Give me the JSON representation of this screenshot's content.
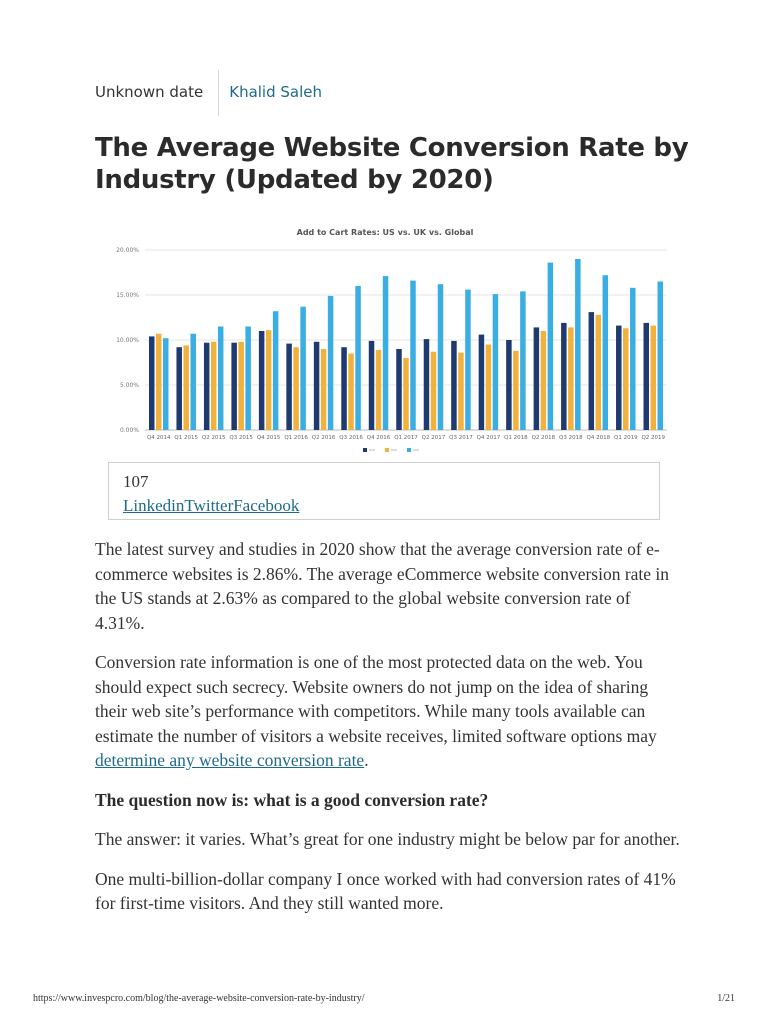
{
  "meta": {
    "date": "Unknown date",
    "author": "Khalid Saleh"
  },
  "title": "The Average Website Conversion Rate by Industry (Updated by 2020)",
  "share": {
    "count": "107",
    "links": "LinkedinTwitterFacebook"
  },
  "chart_data": {
    "type": "bar",
    "title": "Add to Cart Rates: US vs. UK vs. Global",
    "categories": [
      "Q4 2014",
      "Q1 2015",
      "Q2 2015",
      "Q3 2015",
      "Q4 2015",
      "Q1 2016",
      "Q2 2016",
      "Q3 2016",
      "Q4 2016",
      "Q1 2017",
      "Q2 2017",
      "Q3 2017",
      "Q4 2017",
      "Q1 2018",
      "Q2 2018",
      "Q3 2018",
      "Q4 2018",
      "Q1 2019",
      "Q2 2019"
    ],
    "ylim": [
      0,
      20
    ],
    "yticks": [
      "0.00%",
      "5.00%",
      "10.00%",
      "15.00%",
      "20.00%"
    ],
    "series": [
      {
        "color": "#1f3a6e",
        "values": [
          10.4,
          9.2,
          9.7,
          9.7,
          11.0,
          9.6,
          9.8,
          9.2,
          9.9,
          9.0,
          10.1,
          9.9,
          10.6,
          10.0,
          11.4,
          11.9,
          13.1,
          11.6,
          11.9
        ]
      },
      {
        "color": "#f0b23c",
        "values": [
          10.7,
          9.4,
          9.8,
          9.8,
          11.1,
          9.2,
          9.0,
          8.5,
          8.9,
          8.0,
          8.7,
          8.6,
          9.5,
          8.8,
          11.0,
          11.4,
          12.8,
          11.3,
          11.6
        ]
      },
      {
        "color": "#3aaee3",
        "values": [
          10.2,
          10.7,
          11.5,
          11.5,
          13.2,
          13.7,
          14.9,
          16.0,
          17.1,
          16.6,
          16.2,
          15.6,
          15.1,
          15.4,
          18.6,
          19.0,
          17.2,
          15.8,
          16.5
        ]
      }
    ],
    "grid": true,
    "legend": "bottom-center"
  },
  "paragraphs": {
    "p1": "The latest survey and studies in 2020 show that the average conversion rate of e-commerce websites is 2.86%. The average eCommerce website conversion rate in the US stands at 2.63% as compared to the global website conversion rate of 4.31%.",
    "p2_text": "Conversion rate information is one of the most protected data on the web. You should expect such secrecy. Website owners do not jump on the idea of sharing their web site’s performance with competitors. While many tools available can estimate the number of visitors a website receives, limited software options may ",
    "p2_link": "determine any website conversion rate",
    "p2_end": ".",
    "question": "The question now is: what is a good conversion rate?",
    "p3": "The answer: it varies. What’s great for one industry might be below par for another.",
    "p4": "One multi-billion-dollar company I once worked with had conversion rates of 41% for first-time visitors. And they still wanted more."
  },
  "footer": {
    "url": "https://www.invespcro.com/blog/the-average-website-conversion-rate-by-industry/",
    "page": "1/21"
  }
}
